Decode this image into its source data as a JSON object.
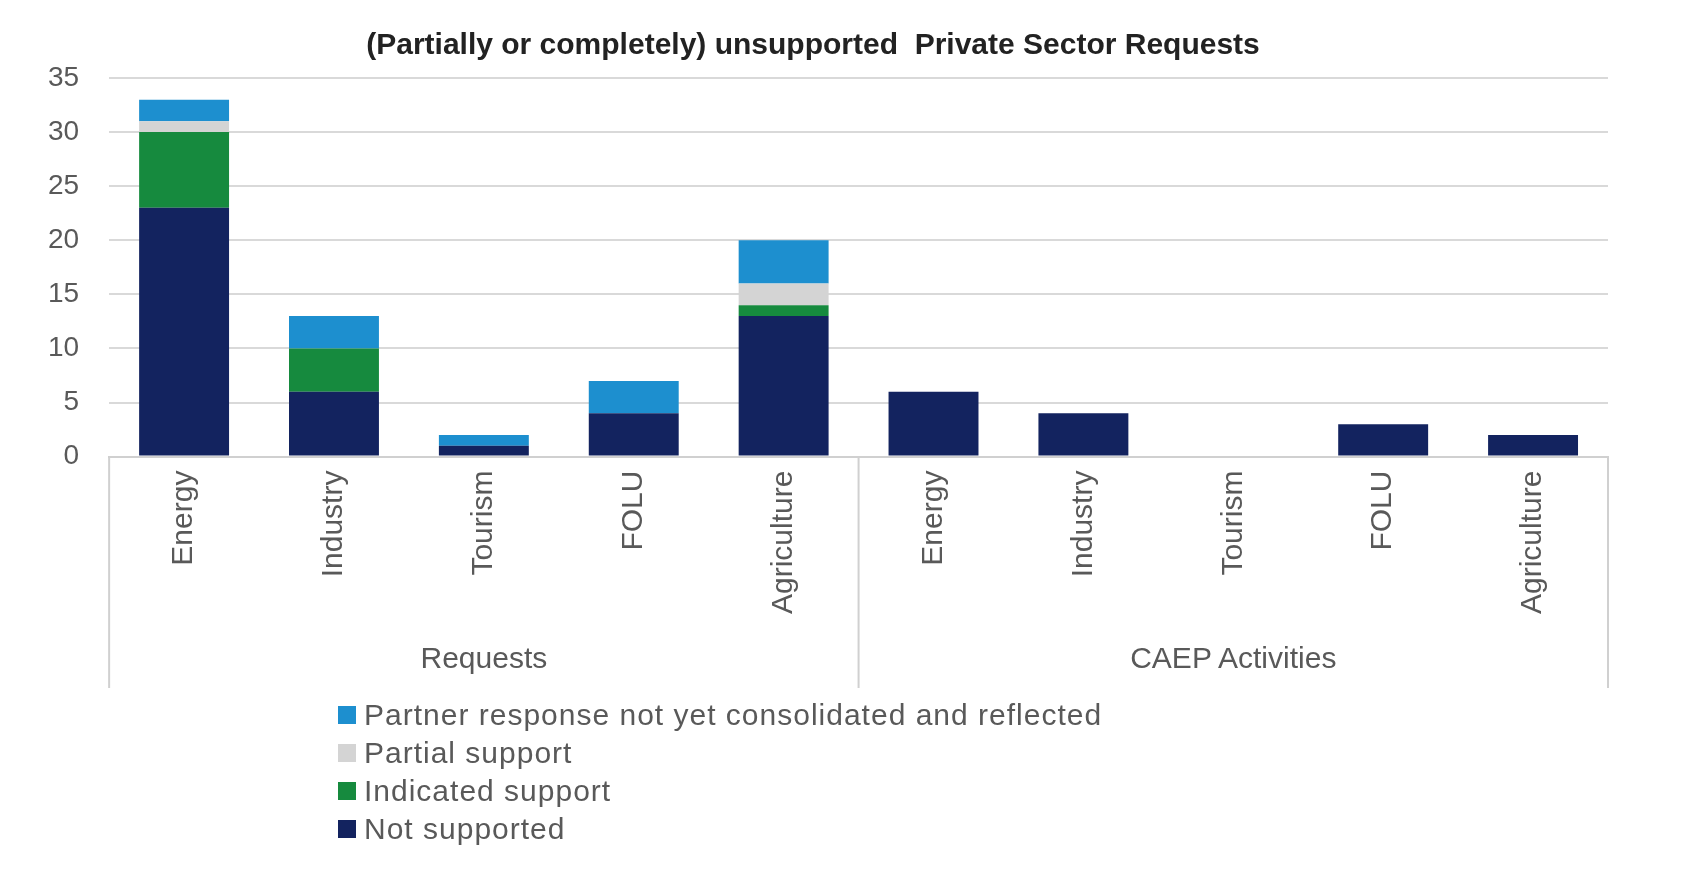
{
  "chart_data": {
    "type": "bar",
    "title": "(Partially or completely) unsupported  Private Sector Requests",
    "stacked": true,
    "categories": [
      "Energy",
      "Industry",
      "Tourism",
      "FOLU",
      "Agriculture",
      "Energy",
      "Industry",
      "Tourism",
      "FOLU",
      "Agriculture"
    ],
    "series": [
      {
        "name": "Not supported",
        "color": "#13235f",
        "values": [
          23,
          6,
          1,
          4,
          13,
          6,
          4,
          0,
          3,
          2
        ]
      },
      {
        "name": "Indicated support",
        "color": "#168a3e",
        "values": [
          7,
          4,
          0,
          0,
          1,
          0,
          0,
          0,
          0,
          0
        ]
      },
      {
        "name": "Partial support",
        "color": "#d4d4d4",
        "values": [
          1,
          0,
          0,
          0,
          2,
          0,
          0,
          0,
          0,
          0
        ]
      },
      {
        "name": "Partner response not yet consolidated and reflected",
        "color": "#1d8fcf",
        "values": [
          2,
          3,
          1,
          3,
          4,
          0,
          0,
          0,
          0,
          0
        ]
      }
    ],
    "ylim": [
      0,
      35
    ],
    "yticks": [
      0,
      5,
      10,
      15,
      20,
      25,
      30,
      35
    ],
    "grid": "y",
    "legend": "bottom",
    "annotations": [
      "Requests",
      "CAEP Activities"
    ]
  }
}
